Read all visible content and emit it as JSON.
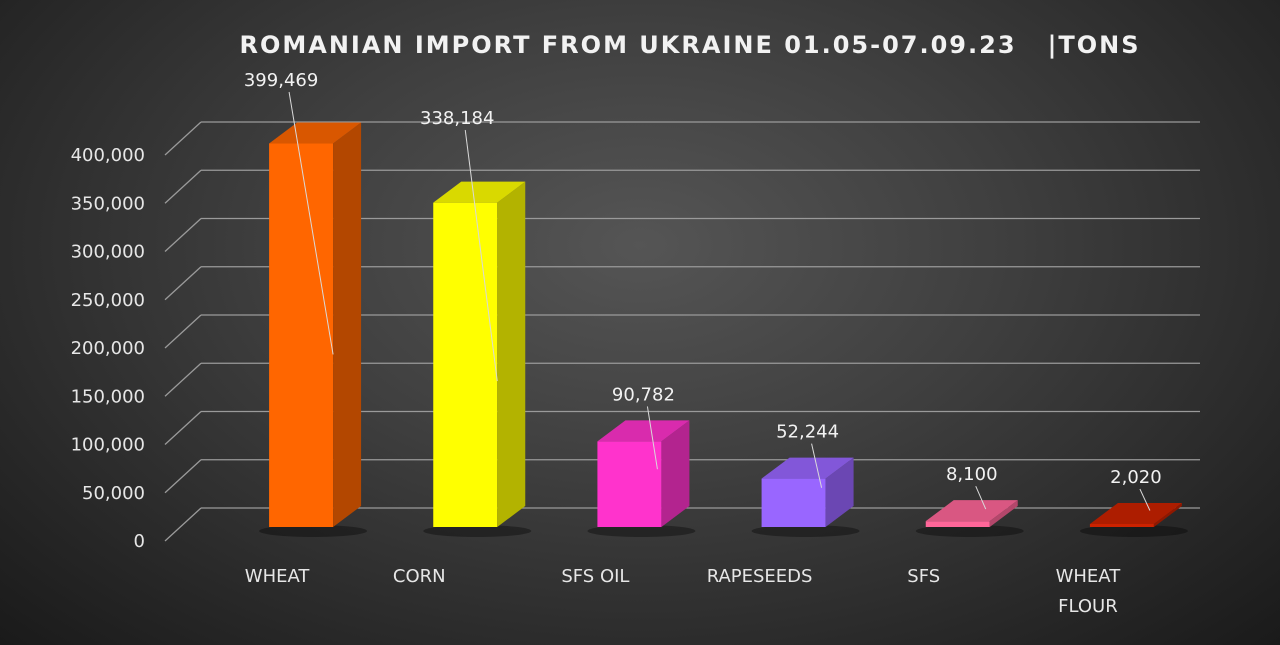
{
  "chart_data": {
    "type": "bar",
    "title": "ROMANIAN IMPORT FROM UKRAINE 01.05-07.09.23   |TONS",
    "categories": [
      "WHEAT",
      "CORN",
      "SFS OIL",
      "RAPESEEDS",
      "SFS",
      "WHEAT FLOUR"
    ],
    "category_lines": [
      [
        "WHEAT"
      ],
      [
        "CORN"
      ],
      [
        "SFS OIL"
      ],
      [
        "RAPESEEDS"
      ],
      [
        "SFS"
      ],
      [
        "WHEAT",
        "FLOUR"
      ]
    ],
    "values": [
      399469,
      338184,
      90782,
      52244,
      8100,
      2020
    ],
    "data_labels": [
      "399,469",
      "338,184",
      "90,782",
      "52,244",
      "8,100",
      "2,020"
    ],
    "colors": [
      "#ff6600",
      "#ffff00",
      "#ff33cc",
      "#9966ff",
      "#ff6699",
      "#cc2200"
    ],
    "ylim": [
      0,
      400000
    ],
    "yticks": [
      "0",
      "50,000",
      "100,000",
      "150,000",
      "200,000",
      "250,000",
      "300,000",
      "350,000",
      "400,000"
    ],
    "ytick_values": [
      0,
      50000,
      100000,
      150000,
      200000,
      250000,
      300000,
      350000,
      400000
    ],
    "grid": true,
    "style": "3d-column",
    "background": "#3a3a3a"
  }
}
